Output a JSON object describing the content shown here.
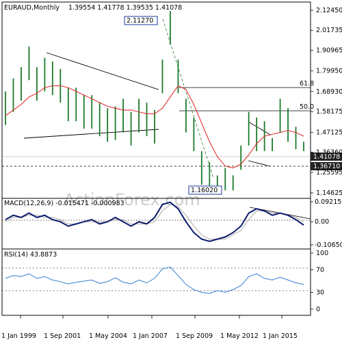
{
  "chart_data": [
    {
      "type": "ohlc",
      "title": "EURAUD,Monthly",
      "ohlc_text": "1.39554 1.41778 1.39535 1.41078",
      "y_ticks": [
        "2.12450",
        "2.01735",
        "1.90965",
        "1.79950",
        "1.68930",
        "1.58175",
        "1.47125",
        "1.36360",
        "1.25595",
        "1.14625"
      ],
      "ylim": [
        1.14625,
        2.1245
      ],
      "x_ticks": [
        "1 Jan 1999",
        "1 Sep 2001",
        "1 May 2004",
        "1 Jan 2007",
        "1 Sep 2009",
        "1 May 2012",
        "1 Jan 2015"
      ],
      "watermark": "ActionForex.com",
      "annotations": {
        "high_box": "2.11270",
        "low_box": "1.16020",
        "price_box": "1.41078",
        "level_box": "1.36710",
        "fib_618": "61.8",
        "fib_500": "50.0"
      },
      "series": [
        {
          "name": "price_high",
          "values": [
            1.69,
            1.76,
            1.82,
            1.93,
            1.82,
            1.87,
            1.85,
            1.81,
            1.71,
            1.71,
            1.67,
            1.67,
            1.63,
            1.6,
            1.61,
            1.65,
            1.58,
            1.65,
            1.63,
            1.59,
            1.86,
            2.12,
            1.86,
            1.65,
            1.55,
            1.37,
            1.31,
            1.24,
            1.28,
            1.24,
            1.4,
            1.58,
            1.55,
            1.53,
            1.44,
            1.65,
            1.6,
            1.5,
            1.42
          ]
        },
        {
          "name": "price_low",
          "values": [
            1.51,
            1.58,
            1.64,
            1.75,
            1.64,
            1.69,
            1.67,
            1.63,
            1.53,
            1.53,
            1.49,
            1.49,
            1.45,
            1.42,
            1.43,
            1.47,
            1.4,
            1.47,
            1.45,
            1.41,
            1.68,
            1.94,
            1.68,
            1.47,
            1.37,
            1.19,
            1.16,
            1.16,
            1.16,
            1.16,
            1.27,
            1.4,
            1.37,
            1.37,
            1.37,
            1.47,
            1.42,
            1.38,
            1.37
          ]
        },
        {
          "name": "moving_average",
          "values": [
            1.56,
            1.59,
            1.62,
            1.66,
            1.68,
            1.71,
            1.72,
            1.72,
            1.71,
            1.69,
            1.67,
            1.65,
            1.63,
            1.61,
            1.6,
            1.59,
            1.59,
            1.58,
            1.57,
            1.57,
            1.6,
            1.66,
            1.72,
            1.7,
            1.62,
            1.52,
            1.42,
            1.34,
            1.29,
            1.28,
            1.3,
            1.35,
            1.41,
            1.45,
            1.46,
            1.47,
            1.48,
            1.47,
            1.45
          ]
        }
      ]
    },
    {
      "type": "line",
      "title": "MACD(12,26,9) -0.015471 -0.000983",
      "y_ticks": [
        "0.092158",
        "0.00",
        "-0.106503"
      ],
      "ylim": [
        -0.106503,
        0.092158
      ],
      "series": [
        {
          "name": "macd",
          "values": [
            0.01,
            0.03,
            0.02,
            0.04,
            0.02,
            0.03,
            0.01,
            0.0,
            -0.02,
            -0.01,
            0.0,
            0.01,
            -0.01,
            0.0,
            0.02,
            0.0,
            -0.02,
            0.0,
            -0.01,
            0.02,
            0.08,
            0.09,
            0.06,
            0.0,
            -0.05,
            -0.08,
            -0.09,
            -0.08,
            -0.07,
            -0.05,
            -0.02,
            0.04,
            0.06,
            0.05,
            0.03,
            0.04,
            0.03,
            0.01,
            -0.015
          ]
        },
        {
          "name": "signal",
          "values": [
            0.0,
            0.02,
            0.02,
            0.03,
            0.03,
            0.02,
            0.02,
            0.01,
            -0.01,
            -0.01,
            0.0,
            0.0,
            0.0,
            0.0,
            0.01,
            0.01,
            -0.01,
            -0.01,
            -0.01,
            0.0,
            0.05,
            0.08,
            0.07,
            0.03,
            -0.02,
            -0.06,
            -0.08,
            -0.08,
            -0.08,
            -0.06,
            -0.04,
            0.01,
            0.05,
            0.05,
            0.04,
            0.04,
            0.03,
            0.02,
            -0.001
          ]
        }
      ]
    },
    {
      "type": "line",
      "title": "RSI(14) 43.8873",
      "y_ticks": [
        "100",
        "70",
        "30",
        "0"
      ],
      "ylim": [
        0,
        100
      ],
      "series": [
        {
          "name": "rsi",
          "values": [
            55,
            60,
            58,
            63,
            55,
            58,
            52,
            49,
            45,
            48,
            50,
            52,
            46,
            49,
            56,
            48,
            45,
            52,
            47,
            55,
            72,
            75,
            60,
            44,
            35,
            30,
            28,
            33,
            30,
            35,
            42,
            58,
            63,
            55,
            52,
            57,
            52,
            47,
            44
          ]
        }
      ]
    }
  ]
}
